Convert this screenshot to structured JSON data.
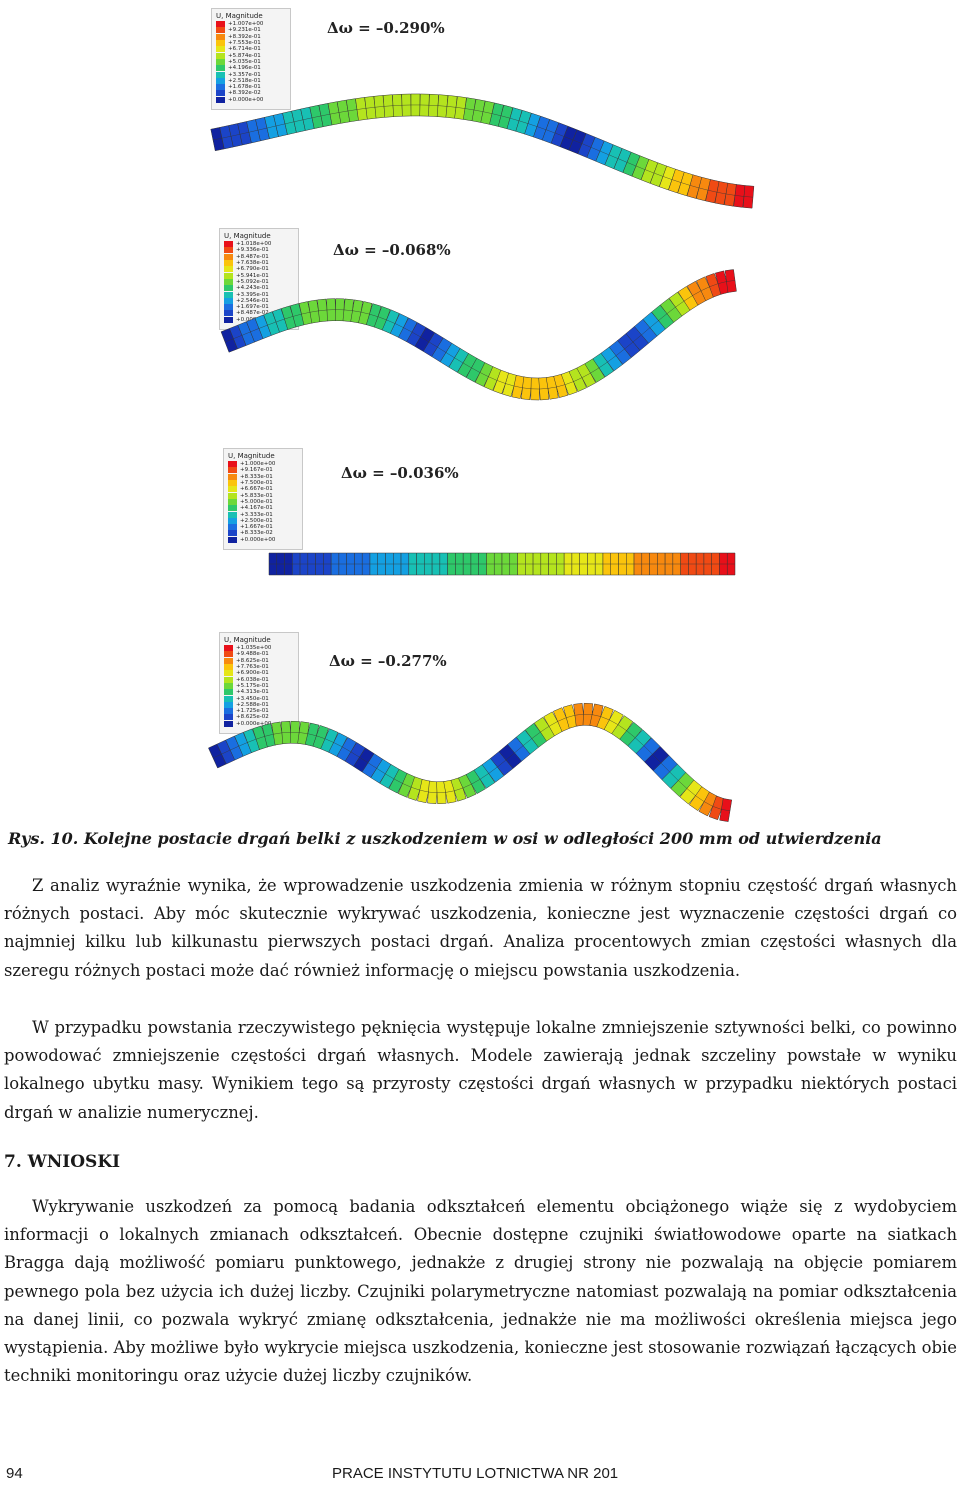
{
  "figure": {
    "panels": [
      {
        "legend_title": "U, Magnitude",
        "legend_values": [
          "+1.007e+00",
          "+9.231e-01",
          "+8.392e-01",
          "+7.553e-01",
          "+6.714e-01",
          "+5.874e-01",
          "+5.035e-01",
          "+4.196e-01",
          "+3.357e-01",
          "+2.518e-01",
          "+1.678e-01",
          "+8.392e-02",
          "+0.000e+00"
        ],
        "delta": "Δω = –0.290%",
        "mode": 2
      },
      {
        "legend_title": "U, Magnitude",
        "legend_values": [
          "+1.018e+00",
          "+9.336e-01",
          "+8.487e-01",
          "+7.638e-01",
          "+6.790e-01",
          "+5.941e-01",
          "+5.092e-01",
          "+4.243e-01",
          "+3.395e-01",
          "+2.546e-01",
          "+1.697e-01",
          "+8.487e-02",
          "+0.000e+00"
        ],
        "delta": "Δω = –0.068%",
        "mode": 3
      },
      {
        "legend_title": "U, Magnitude",
        "legend_values": [
          "+1.000e+00",
          "+9.167e-01",
          "+8.333e-01",
          "+7.500e-01",
          "+6.667e-01",
          "+5.833e-01",
          "+5.000e-01",
          "+4.167e-01",
          "+3.333e-01",
          "+2.500e-01",
          "+1.667e-01",
          "+8.333e-02",
          "+0.000e+00"
        ],
        "delta": "Δω = –0.036%",
        "mode": 0
      },
      {
        "legend_title": "U, Magnitude",
        "legend_values": [
          "+1.035e+00",
          "+9.488e-01",
          "+8.625e-01",
          "+7.763e-01",
          "+6.900e-01",
          "+6.038e-01",
          "+5.175e-01",
          "+4.313e-01",
          "+3.450e-01",
          "+2.588e-01",
          "+1.725e-01",
          "+8.625e-02",
          "+0.000e+00"
        ],
        "delta": "Δω = –0.277%",
        "mode": 4
      }
    ],
    "legend_colors": [
      "#e8101a",
      "#f04a14",
      "#f7890f",
      "#fbc40c",
      "#e6e618",
      "#b4e41e",
      "#6cd83a",
      "#2ec86a",
      "#18c0b4",
      "#14a0e2",
      "#1a6ee0",
      "#1b44c8",
      "#1022a0"
    ],
    "caption": "Rys. 10. Kolejne postacie drgań belki z uszkodzeniem w osi w odległości 200 mm od utwierdzenia"
  },
  "paragraphs": [
    "Z analiz wyraźnie wynika, że wprowadzenie uszkodzenia zmienia w różnym stopniu częstość drgań własnych różnych postaci. Aby móc skutecznie wykrywać uszkodzenia, konieczne jest wyznaczenie częstości drgań co najmniej kilku lub kilkunastu pierwszych postaci drgań. Analiza procentowych zmian częstości własnych dla szeregu różnych postaci może dać również informację o miejscu powstania uszkodzenia.",
    "W przypadku powstania rzeczywistego pęknięcia występuje lokalne zmniejszenie sztywności belki, co powinno powodować zmniejszenie częstości drgań własnych. Modele zawierają jednak szczeliny powstałe w wyniku lokalnego ubytku masy. Wynikiem tego są przyrosty częstości drgań własnych w przypadku niektórych postaci drgań w analizie numerycznej."
  ],
  "section_heading": "7. WNIOSKI",
  "conclusion": "Wykrywanie uszkodzeń za pomocą badania odkształceń elementu obciążonego wiąże się z wydobyciem informacji o lokalnych zmianach odkształceń. Obecnie dostępne czujniki światłowodowe oparte na siatkach Bragga dają możliwość pomiaru punktowego, jednakże z drugiej strony nie pozwalają na objęcie pomiarem pewnego pola bez użycia ich dużej liczby. Czujniki polarymetryczne natomiast pozwalają na pomiar odkształcenia na danej linii, co pozwala wykryć zmianę odkształcenia, jednakże nie ma możliwości określenia miejsca jego wystąpienia. Aby możliwe było wykrycie miejsca uszkodzenia, konieczne jest stosowanie rozwiązań łączących obie techniki monitoringu oraz użycie dużej liczby czujników.",
  "footer": {
    "page_number": "94",
    "journal": "PRACE INSTYTUTU LOTNICTWA NR 201"
  }
}
